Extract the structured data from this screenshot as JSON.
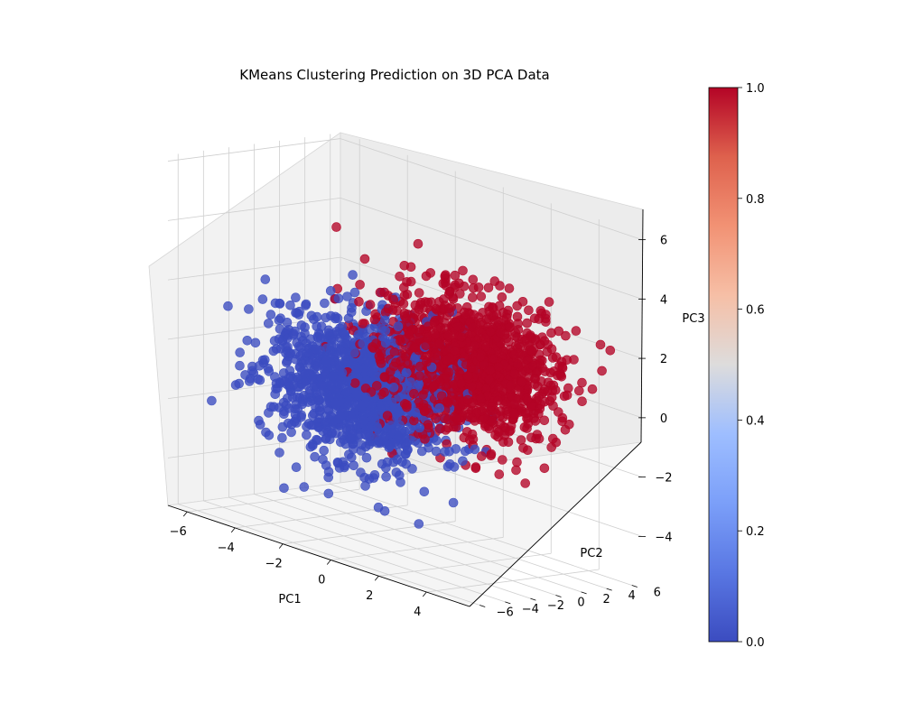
{
  "chart_data": {
    "type": "scatter",
    "title": "KMeans Clustering Prediction on 3D PCA Data",
    "xlabel": "PC1",
    "ylabel": "PC2",
    "zlabel": "PC3",
    "xlim": [
      -6.8,
      5.8
    ],
    "ylim": [
      -6.8,
      6.8
    ],
    "zlim": [
      -5.6,
      6.2
    ],
    "x_ticks": [
      "−6",
      "−4",
      "−2",
      "0",
      "2",
      "4"
    ],
    "y_ticks": [
      "−6",
      "−4",
      "−2",
      "0",
      "2",
      "4",
      "6"
    ],
    "z_ticks": [
      "−4",
      "−2",
      "0",
      "2",
      "4",
      "6"
    ],
    "x_tick_values": [
      -6,
      -4,
      -2,
      0,
      2,
      4
    ],
    "y_tick_values": [
      -6,
      -4,
      -2,
      0,
      2,
      4,
      6
    ],
    "z_tick_values": [
      -4,
      -2,
      0,
      2,
      4,
      6
    ],
    "grid": true,
    "colormap": "coolwarm",
    "colorbar": {
      "range": [
        0.0,
        1.0
      ],
      "ticks": [
        "0.0",
        "0.2",
        "0.4",
        "0.6",
        "0.8",
        "1.0"
      ],
      "tick_values": [
        0.0,
        0.2,
        0.4,
        0.6,
        0.8,
        1.0
      ],
      "placement": "right"
    },
    "clusters": [
      {
        "value": 0.0,
        "color": "#3b4cc0",
        "center": [
          -1.6,
          -1.2,
          -0.6
        ],
        "spread": [
          1.55,
          2.1,
          1.15
        ]
      },
      {
        "value": 1.0,
        "color": "#b40426",
        "center": [
          1.4,
          1.3,
          0.8
        ],
        "spread": [
          1.55,
          2.1,
          1.15
        ]
      }
    ]
  }
}
